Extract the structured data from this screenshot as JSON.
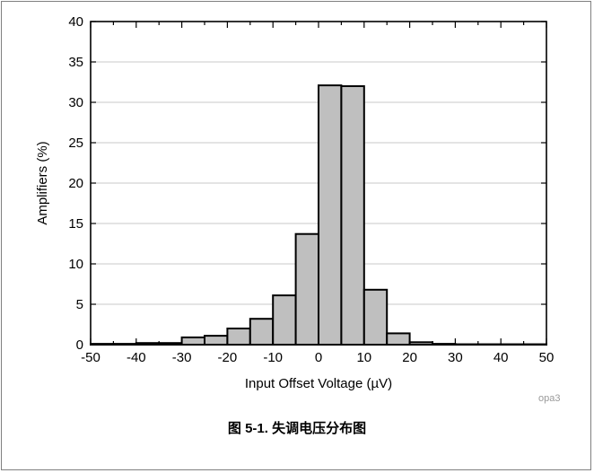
{
  "chart_data": {
    "type": "bar",
    "xlabel": "Input Offset Voltage (µV)",
    "ylabel": "Amplifiers (%)",
    "xlim": [
      -50,
      50
    ],
    "ylim": [
      0,
      40
    ],
    "xticks": [
      "-50",
      "-40",
      "-30",
      "-20",
      "-10",
      "0",
      "10",
      "20",
      "30",
      "40",
      "50"
    ],
    "yticks": [
      "0",
      "5",
      "10",
      "15",
      "20",
      "25",
      "30",
      "35",
      "40"
    ],
    "grid": true,
    "bin_width": 5,
    "bins": [
      {
        "x0": -50,
        "x1": -45,
        "value": 0.1
      },
      {
        "x0": -45,
        "x1": -40,
        "value": 0.1
      },
      {
        "x0": -40,
        "x1": -35,
        "value": 0.2
      },
      {
        "x0": -35,
        "x1": -30,
        "value": 0.2
      },
      {
        "x0": -30,
        "x1": -25,
        "value": 0.9
      },
      {
        "x0": -25,
        "x1": -20,
        "value": 1.1
      },
      {
        "x0": -20,
        "x1": -15,
        "value": 2.0
      },
      {
        "x0": -15,
        "x1": -10,
        "value": 3.2
      },
      {
        "x0": -10,
        "x1": -5,
        "value": 6.1
      },
      {
        "x0": -5,
        "x1": 0,
        "value": 13.7
      },
      {
        "x0": 0,
        "x1": 5,
        "value": 32.1
      },
      {
        "x0": 5,
        "x1": 10,
        "value": 32.0
      },
      {
        "x0": 10,
        "x1": 15,
        "value": 6.8
      },
      {
        "x0": 15,
        "x1": 20,
        "value": 1.4
      },
      {
        "x0": 20,
        "x1": 25,
        "value": 0.3
      },
      {
        "x0": 25,
        "x1": 30,
        "value": 0.1
      },
      {
        "x0": 30,
        "x1": 35,
        "value": 0.05
      },
      {
        "x0": 35,
        "x1": 40,
        "value": 0.05
      },
      {
        "x0": 40,
        "x1": 45,
        "value": 0.05
      },
      {
        "x0": 45,
        "x1": 50,
        "value": 0.05
      }
    ],
    "bar_color": "#bfbfbf",
    "bar_edge_color": "#000000"
  },
  "watermark": "opa3",
  "caption": "图 5-1. 失调电压分布图"
}
